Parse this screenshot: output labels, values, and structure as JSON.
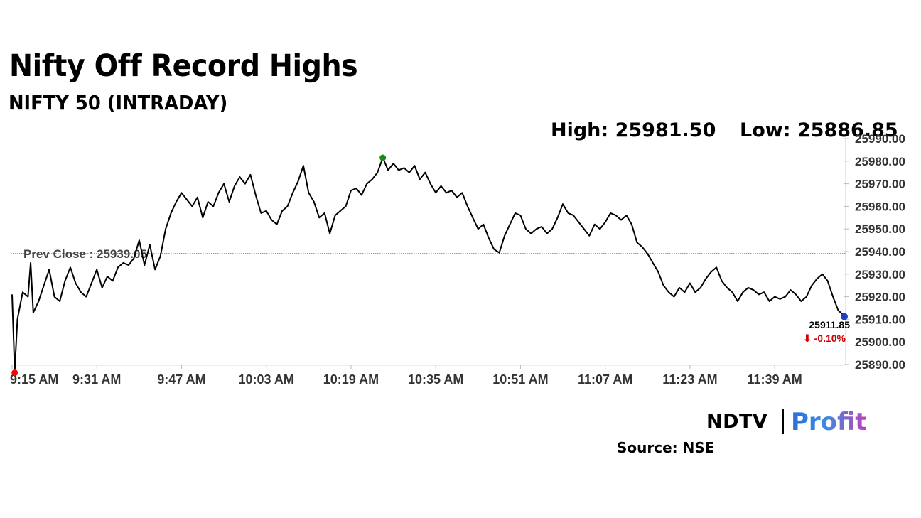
{
  "header": {
    "title": "Nifty Off Record Highs",
    "subtitle": "NIFTY 50 (INTRADAY)",
    "high_label": "High: 25981.50",
    "low_label": "Low: 25886.85"
  },
  "footer": {
    "brand_left": "NDTV",
    "brand_right": "Profit",
    "source": "Source: NSE"
  },
  "colors": {
    "line": "#000000",
    "prev_close_line": "#cc0000",
    "low_marker": "#ff0000",
    "high_marker": "#1a8a1a",
    "last_marker": "#1f3fbf",
    "change_negative": "#d00000"
  },
  "chart_data": {
    "type": "line",
    "title": "NIFTY 50 (INTRADAY)",
    "xlabel": "",
    "ylabel": "",
    "x_tick_labels": [
      "9:15 AM",
      "9:31 AM",
      "9:47 AM",
      "10:03 AM",
      "10:19 AM",
      "10:35 AM",
      "10:51 AM",
      "11:07 AM",
      "11:23 AM",
      "11:39 AM"
    ],
    "y_tick_labels": [
      "25890.00",
      "25900.00",
      "25910.00",
      "25920.00",
      "25930.00",
      "25940.00",
      "25950.00",
      "25960.00",
      "25970.00",
      "25980.00",
      "25990.00"
    ],
    "ylim": [
      25890,
      25990
    ],
    "xlim": [
      0,
      157
    ],
    "grid": false,
    "prev_close": 25939.05,
    "prev_close_label": "Prev Close : 25939.05",
    "last_value_label": "25911.85",
    "change_label": "-0.10%",
    "high": 25981.5,
    "low": 25886.85,
    "series": [
      {
        "points": [
          [
            0,
            25921
          ],
          [
            0.5,
            25887
          ],
          [
            1,
            25910
          ],
          [
            2,
            25922
          ],
          [
            3,
            25920
          ],
          [
            3.5,
            25935
          ],
          [
            4,
            25913
          ],
          [
            5,
            25918
          ],
          [
            6,
            25925
          ],
          [
            7,
            25932
          ],
          [
            8,
            25920
          ],
          [
            9,
            25918
          ],
          [
            10,
            25927
          ],
          [
            11,
            25933
          ],
          [
            12,
            25926
          ],
          [
            13,
            25922
          ],
          [
            14,
            25920
          ],
          [
            15,
            25926
          ],
          [
            16,
            25932
          ],
          [
            17,
            25924
          ],
          [
            18,
            25929
          ],
          [
            19,
            25927
          ],
          [
            20,
            25933
          ],
          [
            21,
            25935
          ],
          [
            22,
            25934
          ],
          [
            23,
            25937
          ],
          [
            24,
            25945
          ],
          [
            25,
            25934
          ],
          [
            26,
            25943
          ],
          [
            27,
            25932
          ],
          [
            28,
            25938
          ],
          [
            29,
            25950
          ],
          [
            30,
            25957
          ],
          [
            31,
            25962
          ],
          [
            32,
            25966
          ],
          [
            33,
            25963
          ],
          [
            34,
            25960
          ],
          [
            35,
            25964
          ],
          [
            36,
            25955
          ],
          [
            37,
            25962
          ],
          [
            38,
            25960
          ],
          [
            39,
            25966
          ],
          [
            40,
            25970
          ],
          [
            41,
            25962
          ],
          [
            42,
            25969
          ],
          [
            43,
            25973
          ],
          [
            44,
            25970
          ],
          [
            45,
            25974
          ],
          [
            46,
            25965
          ],
          [
            47,
            25957
          ],
          [
            48,
            25958
          ],
          [
            49,
            25954
          ],
          [
            50,
            25952
          ],
          [
            51,
            25958
          ],
          [
            52,
            25960
          ],
          [
            53,
            25966
          ],
          [
            54,
            25971
          ],
          [
            55,
            25978
          ],
          [
            56,
            25966
          ],
          [
            57,
            25962
          ],
          [
            58,
            25955
          ],
          [
            59,
            25957
          ],
          [
            60,
            25948
          ],
          [
            61,
            25956
          ],
          [
            62,
            25958
          ],
          [
            63,
            25960
          ],
          [
            64,
            25967
          ],
          [
            65,
            25968
          ],
          [
            66,
            25965
          ],
          [
            67,
            25970
          ],
          [
            68,
            25972
          ],
          [
            69,
            25975
          ],
          [
            70,
            25981.5
          ],
          [
            71,
            25976
          ],
          [
            72,
            25979
          ],
          [
            73,
            25976
          ],
          [
            74,
            25977
          ],
          [
            75,
            25975
          ],
          [
            76,
            25978
          ],
          [
            77,
            25972
          ],
          [
            78,
            25975
          ],
          [
            79,
            25970
          ],
          [
            80,
            25966
          ],
          [
            81,
            25969
          ],
          [
            82,
            25966
          ],
          [
            83,
            25967
          ],
          [
            84,
            25964
          ],
          [
            85,
            25966
          ],
          [
            86,
            25960
          ],
          [
            87,
            25955
          ],
          [
            88,
            25950
          ],
          [
            89,
            25952
          ],
          [
            90,
            25946
          ],
          [
            91,
            25941
          ],
          [
            92,
            25939.5
          ],
          [
            93,
            25947
          ],
          [
            94,
            25952
          ],
          [
            95,
            25957
          ],
          [
            96,
            25956
          ],
          [
            97,
            25950
          ],
          [
            98,
            25948
          ],
          [
            99,
            25950
          ],
          [
            100,
            25951
          ],
          [
            101,
            25948
          ],
          [
            102,
            25950
          ],
          [
            103,
            25955
          ],
          [
            104,
            25961
          ],
          [
            105,
            25957
          ],
          [
            106,
            25956
          ],
          [
            107,
            25953
          ],
          [
            108,
            25950
          ],
          [
            109,
            25947
          ],
          [
            110,
            25952
          ],
          [
            111,
            25950
          ],
          [
            112,
            25953
          ],
          [
            113,
            25957
          ],
          [
            114,
            25956
          ],
          [
            115,
            25954
          ],
          [
            116,
            25956
          ],
          [
            117,
            25952
          ],
          [
            118,
            25944
          ],
          [
            119,
            25942
          ],
          [
            120,
            25939
          ],
          [
            121,
            25935
          ],
          [
            122,
            25931
          ],
          [
            123,
            25925
          ],
          [
            124,
            25922
          ],
          [
            125,
            25920
          ],
          [
            126,
            25924
          ],
          [
            127,
            25922
          ],
          [
            128,
            25926
          ],
          [
            129,
            25922
          ],
          [
            130,
            25924
          ],
          [
            131,
            25928
          ],
          [
            132,
            25931
          ],
          [
            133,
            25933
          ],
          [
            134,
            25927
          ],
          [
            135,
            25924
          ],
          [
            136,
            25922
          ],
          [
            137,
            25918
          ],
          [
            138,
            25922
          ],
          [
            139,
            25924
          ],
          [
            140,
            25923
          ],
          [
            141,
            25921
          ],
          [
            142,
            25922
          ],
          [
            143,
            25918
          ],
          [
            144,
            25920
          ],
          [
            145,
            25919
          ],
          [
            146,
            25920
          ],
          [
            147,
            25923
          ],
          [
            148,
            25921
          ],
          [
            149,
            25918
          ],
          [
            150,
            25920
          ],
          [
            151,
            25925
          ],
          [
            152,
            25928
          ],
          [
            153,
            25930
          ],
          [
            154,
            25927
          ],
          [
            155,
            25920
          ],
          [
            156,
            25914
          ],
          [
            157,
            25911.85
          ]
        ]
      }
    ]
  }
}
